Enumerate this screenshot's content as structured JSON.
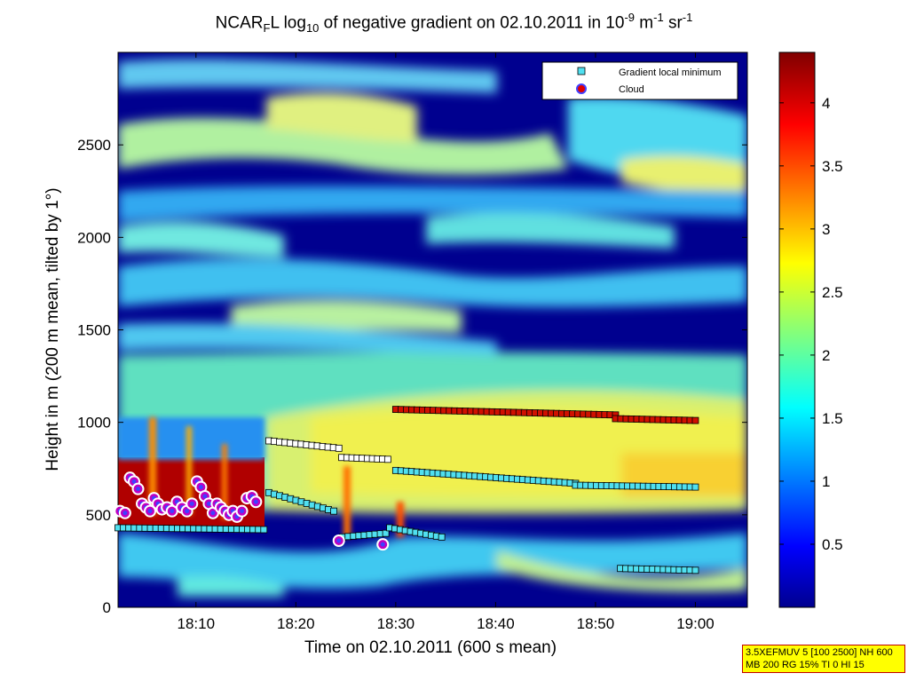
{
  "chart_data": {
    "type": "heatmap",
    "title_parts": [
      "NCAR",
      "F",
      "L log",
      "10",
      " of negative gradient on 02.10.2011 in 10",
      "-9",
      " m",
      "-1",
      " sr",
      "-1"
    ],
    "xlabel": "Time on 02.10.2011 (600 s mean)",
    "ylabel": "Height in m (200 m mean, tilted by 1°)",
    "x_ticks": [
      "18:10",
      "18:20",
      "18:30",
      "18:40",
      "18:50",
      "19:00"
    ],
    "x_tick_minutes": [
      10,
      20,
      30,
      40,
      50,
      60
    ],
    "xlim_minutes": [
      2.2,
      65.2
    ],
    "y_ticks": [
      0,
      500,
      1000,
      1500,
      2000,
      2500
    ],
    "ylim": [
      0,
      3000
    ],
    "colorbar": {
      "ticks": [
        0.5,
        1,
        1.5,
        2,
        2.5,
        3,
        3.5,
        4
      ],
      "range": [
        0,
        4.4
      ],
      "colormap": "jet"
    },
    "legend": {
      "position": "top-right",
      "entries": [
        "Gradient local minimum",
        "Cloud"
      ]
    },
    "series": [
      {
        "name": "Gradient local minimum",
        "marker": "square",
        "segments": [
          {
            "x": [
              2.2,
              16.8
            ],
            "y": [
              430,
              420
            ]
          },
          {
            "x": [
              17.3,
              23.8
            ],
            "y": [
              620,
              520
            ]
          },
          {
            "x": [
              17.3,
              24.3
            ],
            "y": [
              900,
              860
            ]
          },
          {
            "x": [
              24.6,
              29.2
            ],
            "y": [
              810,
              800
            ]
          },
          {
            "x": [
              30.0,
              48.0
            ],
            "y": [
              740,
              670
            ]
          },
          {
            "x": [
              48.0,
              60.0
            ],
            "y": [
              660,
              650
            ]
          },
          {
            "x": [
              30.0,
              52.0
            ],
            "y": [
              1070,
              1040
            ]
          },
          {
            "x": [
              52.0,
              60.0
            ],
            "y": [
              1020,
              1010
            ]
          },
          {
            "x": [
              24.7,
              29.0
            ],
            "y": [
              380,
              400
            ]
          },
          {
            "x": [
              29.4,
              34.6
            ],
            "y": [
              430,
              380
            ]
          },
          {
            "x": [
              52.5,
              60.0
            ],
            "y": [
              210,
              200
            ]
          }
        ]
      },
      {
        "name": "Cloud",
        "marker": "circle",
        "points": [
          [
            2.4,
            520
          ],
          [
            2.9,
            510
          ],
          [
            3.4,
            700
          ],
          [
            3.8,
            680
          ],
          [
            4.2,
            640
          ],
          [
            4.6,
            560
          ],
          [
            5.0,
            540
          ],
          [
            5.4,
            520
          ],
          [
            5.8,
            590
          ],
          [
            6.2,
            560
          ],
          [
            6.6,
            530
          ],
          [
            7.1,
            540
          ],
          [
            7.6,
            520
          ],
          [
            8.1,
            570
          ],
          [
            8.6,
            540
          ],
          [
            9.1,
            520
          ],
          [
            9.6,
            560
          ],
          [
            10.1,
            680
          ],
          [
            10.5,
            650
          ],
          [
            10.9,
            600
          ],
          [
            11.3,
            560
          ],
          [
            11.7,
            510
          ],
          [
            12.1,
            560
          ],
          [
            12.5,
            540
          ],
          [
            12.9,
            520
          ],
          [
            13.3,
            500
          ],
          [
            13.7,
            520
          ],
          [
            14.1,
            490
          ],
          [
            14.6,
            520
          ],
          [
            15.1,
            590
          ],
          [
            15.6,
            600
          ],
          [
            16.0,
            570
          ],
          [
            24.3,
            360
          ],
          [
            28.7,
            340
          ]
        ]
      }
    ]
  },
  "info_box": {
    "line1": "3.5XEFMUV 5 [100 2500] NH 600",
    "line2": "MB 200 RG 15% TI 0 HI 15"
  }
}
